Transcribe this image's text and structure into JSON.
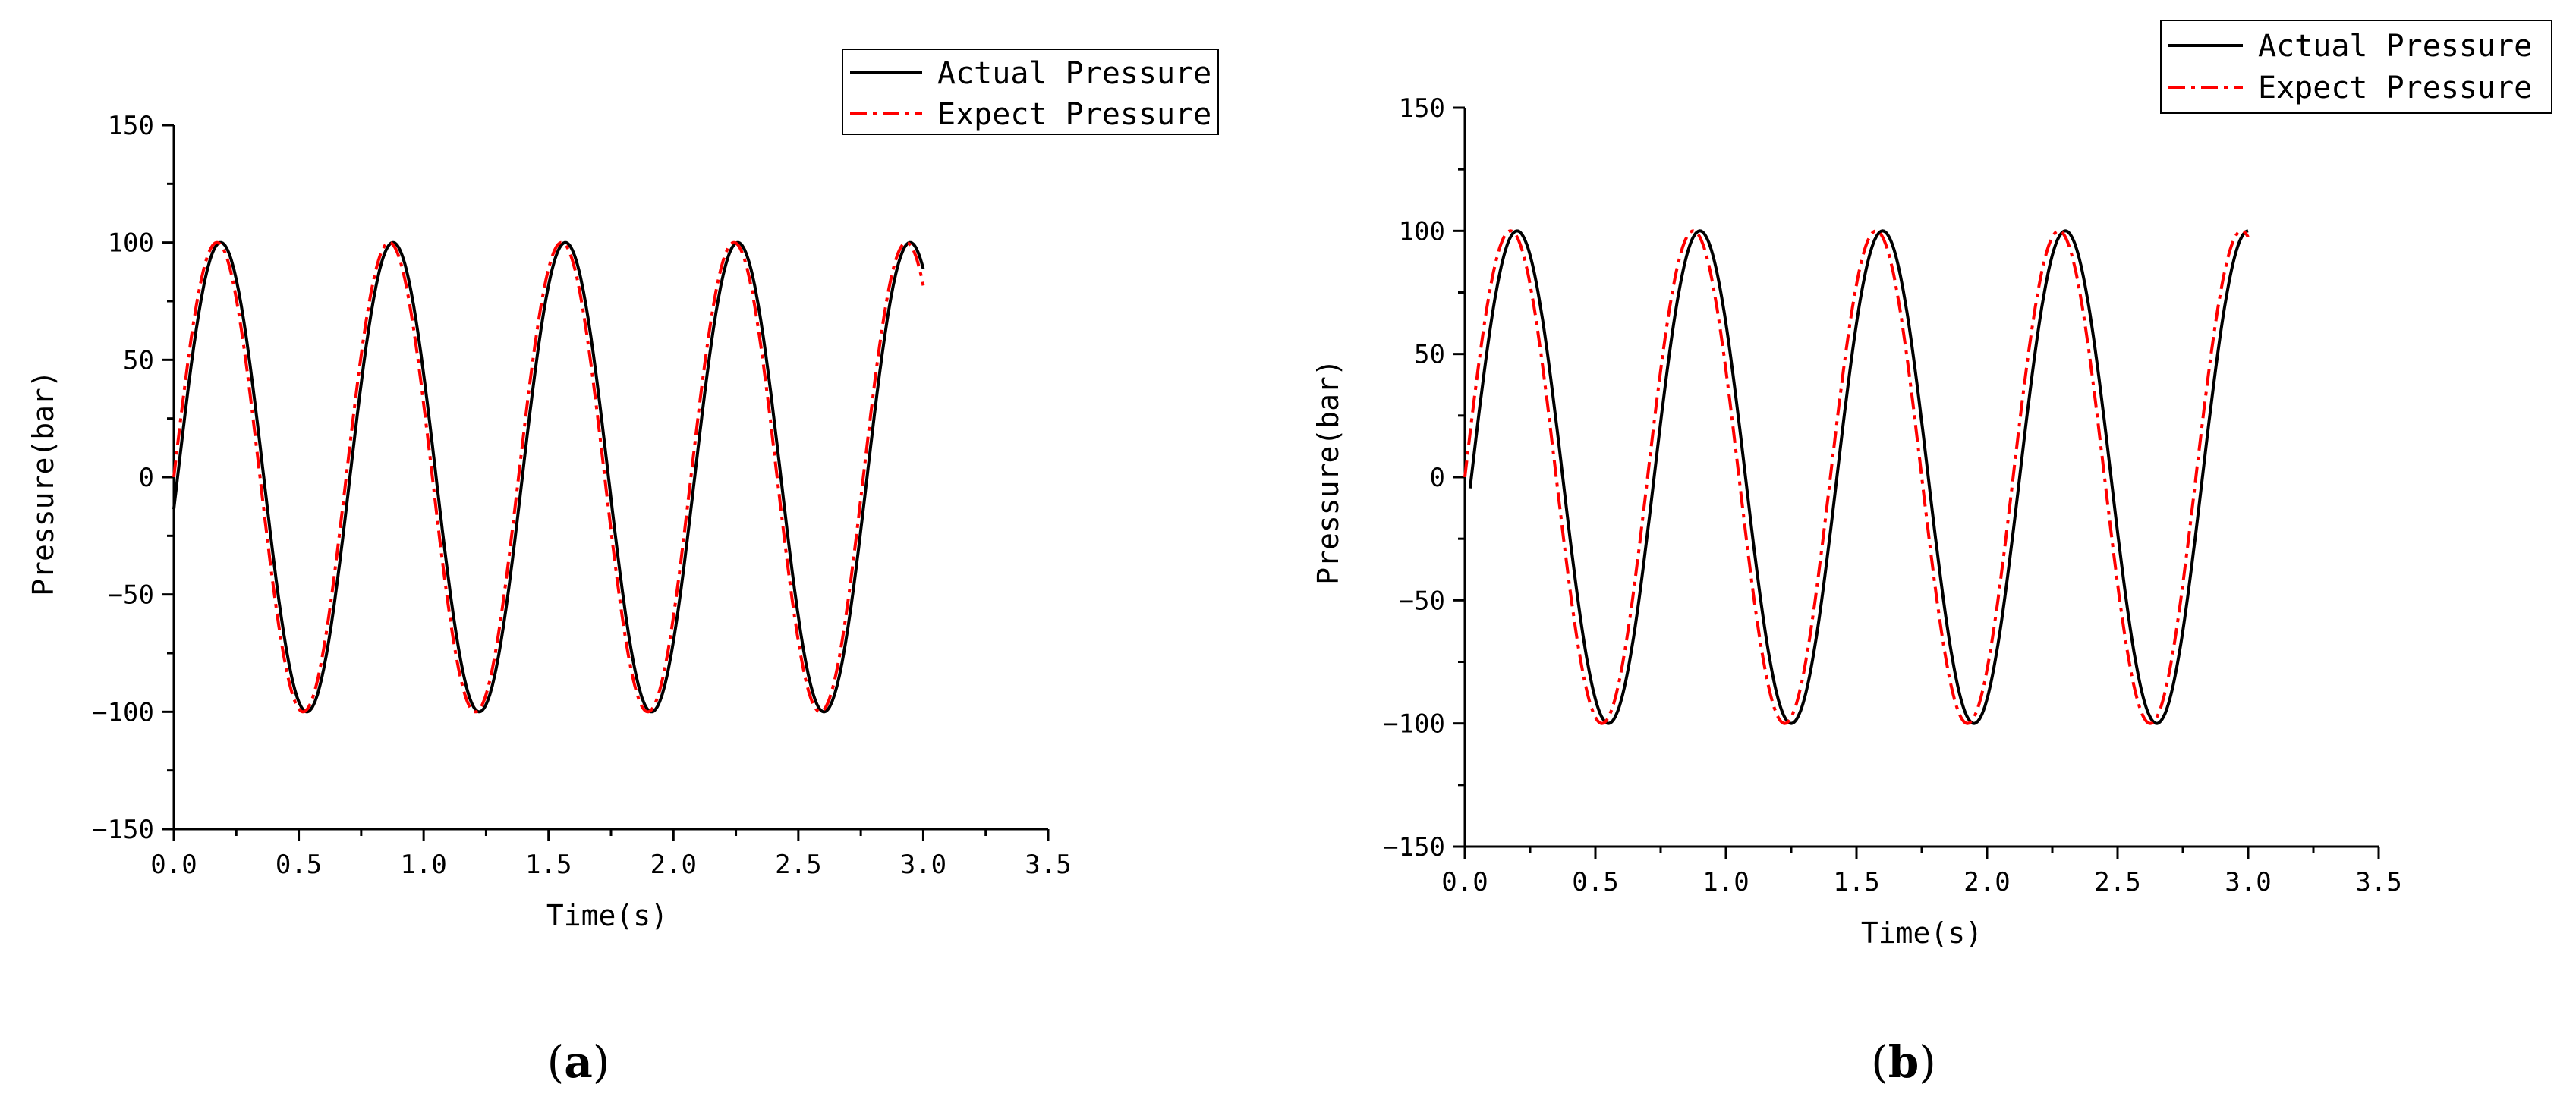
{
  "colors": {
    "actual": "#000000",
    "expect": "#ff0000",
    "axis": "#000000"
  },
  "chart_data": [
    {
      "panel": "a",
      "caption_open": "(",
      "caption_letter": "a",
      "caption_close": ")",
      "type": "line",
      "xlabel": "Time(s)",
      "ylabel": "Pressure(bar)",
      "xlim": [
        0,
        3.5
      ],
      "ylim": [
        -150,
        150
      ],
      "xticks": [
        "0.0",
        "0.5",
        "1.0",
        "1.5",
        "2.0",
        "2.5",
        "3.0",
        "3.5"
      ],
      "yticks": [
        "−150",
        "−100",
        "−50",
        "0",
        "50",
        "100",
        "150"
      ],
      "legend_position": "top-right",
      "series": [
        {
          "name": "Actual Pressure",
          "style": "solid",
          "amplitude": 100,
          "period": 0.69,
          "delay": 0.015,
          "x_start": 0.0,
          "x_end": 3.0
        },
        {
          "name": "Expect Pressure",
          "style": "dashdot",
          "amplitude": 100,
          "period": 0.69,
          "delay": 0.0,
          "x_start": 0.0,
          "x_end": 3.0
        }
      ]
    },
    {
      "panel": "b",
      "caption_open": "(",
      "caption_letter": "b",
      "caption_close": ")",
      "type": "line",
      "xlabel": "Time(s)",
      "ylabel": "Pressure(bar)",
      "xlim": [
        0,
        3.5
      ],
      "ylim": [
        -150,
        150
      ],
      "xticks": [
        "0.0",
        "0.5",
        "1.0",
        "1.5",
        "2.0",
        "2.5",
        "3.0",
        "3.5"
      ],
      "yticks": [
        "−150",
        "−100",
        "−50",
        "0",
        "50",
        "100",
        "150"
      ],
      "legend_position": "top-right",
      "series": [
        {
          "name": "Actual Pressure",
          "style": "solid",
          "amplitude": 100,
          "period": 0.7,
          "delay": 0.025,
          "x_start": 0.02,
          "x_end": 3.0
        },
        {
          "name": "Expect Pressure",
          "style": "dashdot",
          "amplitude": 100,
          "period": 0.7,
          "delay": 0.0,
          "x_start": 0.0,
          "x_end": 3.0
        }
      ]
    }
  ]
}
